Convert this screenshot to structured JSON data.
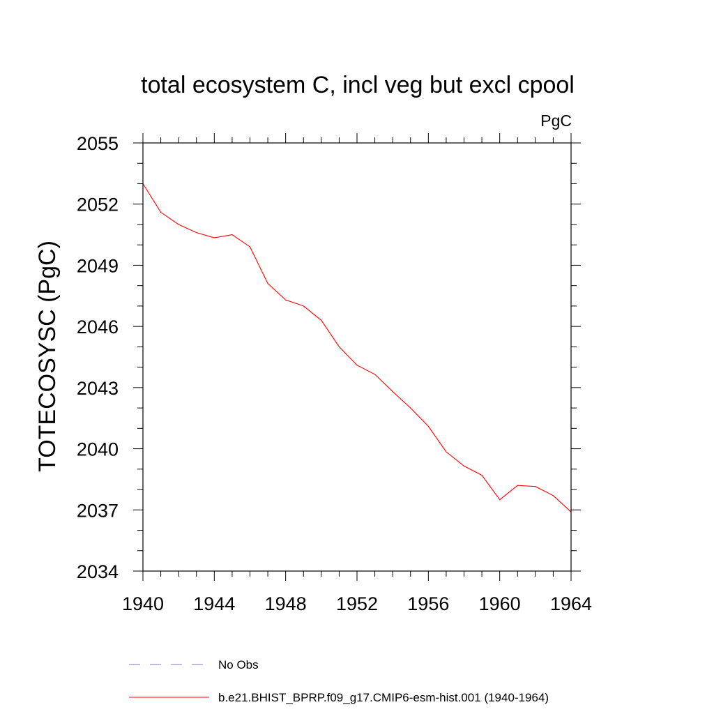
{
  "chart_data": {
    "type": "line",
    "title": "total ecosystem C, incl veg but excl cpool",
    "units_label": "PgC",
    "ylabel": "TOTECOSYSC  (PgC)",
    "xlabel": "",
    "xlim": [
      1940,
      1964
    ],
    "ylim": [
      2034,
      2055
    ],
    "x_ticks": [
      1940,
      1944,
      1948,
      1952,
      1956,
      1960,
      1964
    ],
    "y_ticks": [
      2034,
      2037,
      2040,
      2043,
      2046,
      2049,
      2052,
      2055
    ],
    "grid": false,
    "legend_placement": "bottom",
    "legend": [
      {
        "label": "No Obs",
        "color": "#7b7bc8",
        "style": "dashed"
      },
      {
        "label": "b.e21.BHIST_BPRP.f09_g17.CMIP6-esm-hist.001 (1940-1964)",
        "color": "#ff0000",
        "style": "solid"
      }
    ],
    "series": [
      {
        "name": "b.e21.BHIST_BPRP.f09_g17.CMIP6-esm-hist.001 (1940-1964)",
        "color": "#ff0000",
        "x": [
          1940,
          1941,
          1942,
          1943,
          1944,
          1945,
          1946,
          1947,
          1948,
          1949,
          1950,
          1951,
          1952,
          1953,
          1954,
          1955,
          1956,
          1957,
          1958,
          1959,
          1960,
          1961,
          1962,
          1963,
          1964
        ],
        "y": [
          2053.0,
          2051.6,
          2051.0,
          2050.6,
          2050.35,
          2050.5,
          2049.9,
          2048.1,
          2047.3,
          2047.0,
          2046.3,
          2045.0,
          2044.1,
          2043.65,
          2042.8,
          2042.0,
          2041.1,
          2039.85,
          2039.15,
          2038.7,
          2037.5,
          2038.2,
          2038.15,
          2037.7,
          2036.9
        ]
      }
    ]
  }
}
